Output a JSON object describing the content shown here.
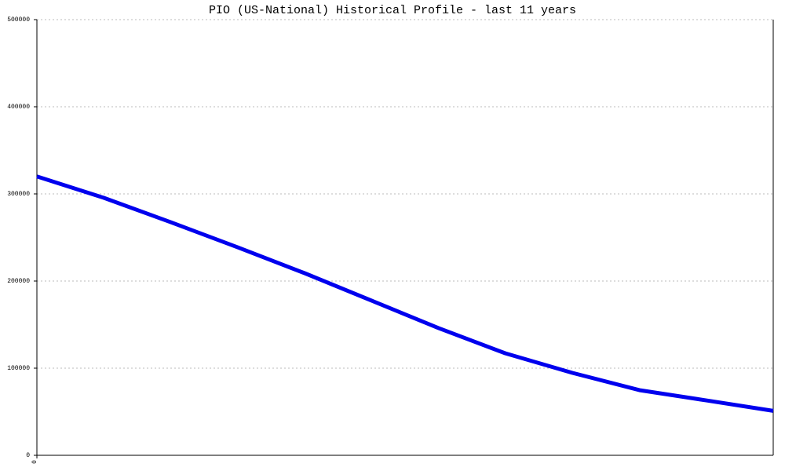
{
  "chart_data": {
    "type": "line",
    "title": "PIO (US-National) Historical Profile - last 11 years",
    "x": [
      0,
      1,
      2,
      3,
      4,
      5,
      6,
      7,
      8,
      9,
      10,
      11
    ],
    "series": [
      {
        "color": "#0000ee",
        "values": [
          320000,
          295500,
          267500,
          238700,
          209000,
          177500,
          146000,
          117000,
          94600,
          74800,
          63000,
          51000
        ]
      }
    ],
    "xlim": [
      0,
      11
    ],
    "xticks": [
      0
    ],
    "ylim": [
      0,
      500000
    ],
    "yticks": [
      0,
      100000,
      200000,
      300000,
      400000,
      500000
    ],
    "grid": true
  }
}
